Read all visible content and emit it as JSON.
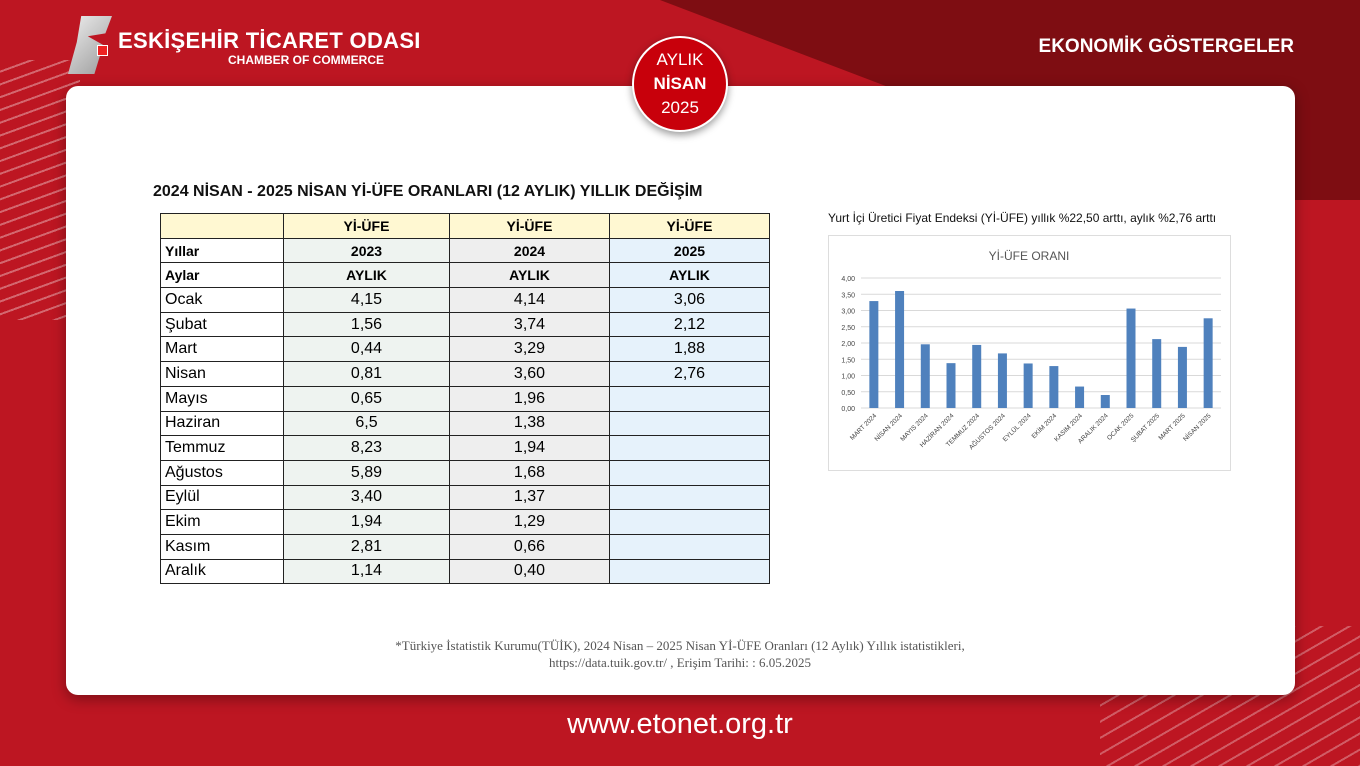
{
  "header": {
    "org": "ESKİŞEHİR TİCARET ODASI",
    "org_sub": "CHAMBER OF COMMERCE",
    "section": "EKONOMİK GÖSTERGELER",
    "badge": {
      "line1": "AYLIK",
      "line2": "NİSAN",
      "line3": "2025"
    }
  },
  "title": "2024 NİSAN - 2025 NİSAN Yİ-ÜFE ORANLARI (12 AYLIK) YILLIK DEĞİŞİM",
  "table": {
    "header": [
      "",
      "Yİ-ÜFE",
      "Yİ-ÜFE",
      "Yİ-ÜFE"
    ],
    "years": [
      "Yıllar",
      "2023",
      "2024",
      "2025"
    ],
    "months_row": [
      "Aylar",
      "AYLIK",
      "AYLIK",
      "AYLIK"
    ],
    "rows": [
      [
        "Ocak",
        "4,15",
        "4,14",
        "3,06"
      ],
      [
        "Şubat",
        "1,56",
        "3,74",
        "2,12"
      ],
      [
        "Mart",
        "0,44",
        "3,29",
        "1,88"
      ],
      [
        "Nisan",
        "0,81",
        "3,60",
        "2,76"
      ],
      [
        "Mayıs",
        "0,65",
        "1,96",
        ""
      ],
      [
        "Haziran",
        "6,5",
        "1,38",
        ""
      ],
      [
        "Temmuz",
        "8,23",
        "1,94",
        ""
      ],
      [
        "Ağustos",
        "5,89",
        "1,68",
        ""
      ],
      [
        "Eylül",
        "3,40",
        "1,37",
        ""
      ],
      [
        "Ekim",
        "1,94",
        "1,29",
        ""
      ],
      [
        "Kasım",
        "2,81",
        "0,66",
        ""
      ],
      [
        "Aralık",
        "1,14",
        "0,40",
        ""
      ]
    ]
  },
  "note": "Yurt İçi Üretici Fiyat Endeksi (Yİ-ÜFE) yıllık %22,50 arttı, aylık %2,76 arttı",
  "chart_data": {
    "type": "bar",
    "title": "Yİ-ÜFE ORANI",
    "categories": [
      "MART 2024",
      "NİSAN 2024",
      "MAYIS 2024",
      "HAZİRAN 2024",
      "TEMMUZ 2024",
      "AĞUSTOS 2024",
      "EYLÜL 2024",
      "EKİM 2024",
      "KASIM 2024",
      "ARALIK 2024",
      "OCAK 2025",
      "ŞUBAT 2025",
      "MART 2025",
      "NİSAN 2025"
    ],
    "values": [
      3.29,
      3.6,
      1.96,
      1.38,
      1.94,
      1.68,
      1.37,
      1.29,
      0.66,
      0.4,
      3.06,
      2.12,
      1.88,
      2.76
    ],
    "yticks": [
      "0,00",
      "0,50",
      "1,00",
      "1,50",
      "2,00",
      "2,50",
      "3,00",
      "3,50",
      "4,00"
    ],
    "ylim": [
      0,
      4
    ],
    "color": "#4f81bd",
    "grid": true
  },
  "footnote": {
    "line1": "*Türkiye İstatistik Kurumu(TÜİK), 2024 Nisan  – 2025 Nisan Yİ-ÜFE Oranları (12 Aylık) Yıllık istatistikleri,",
    "line2": "https://data.tuik.gov.tr/ , Erişim Tarihi: : 6.05.2025"
  },
  "url": "www.etonet.org.tr"
}
